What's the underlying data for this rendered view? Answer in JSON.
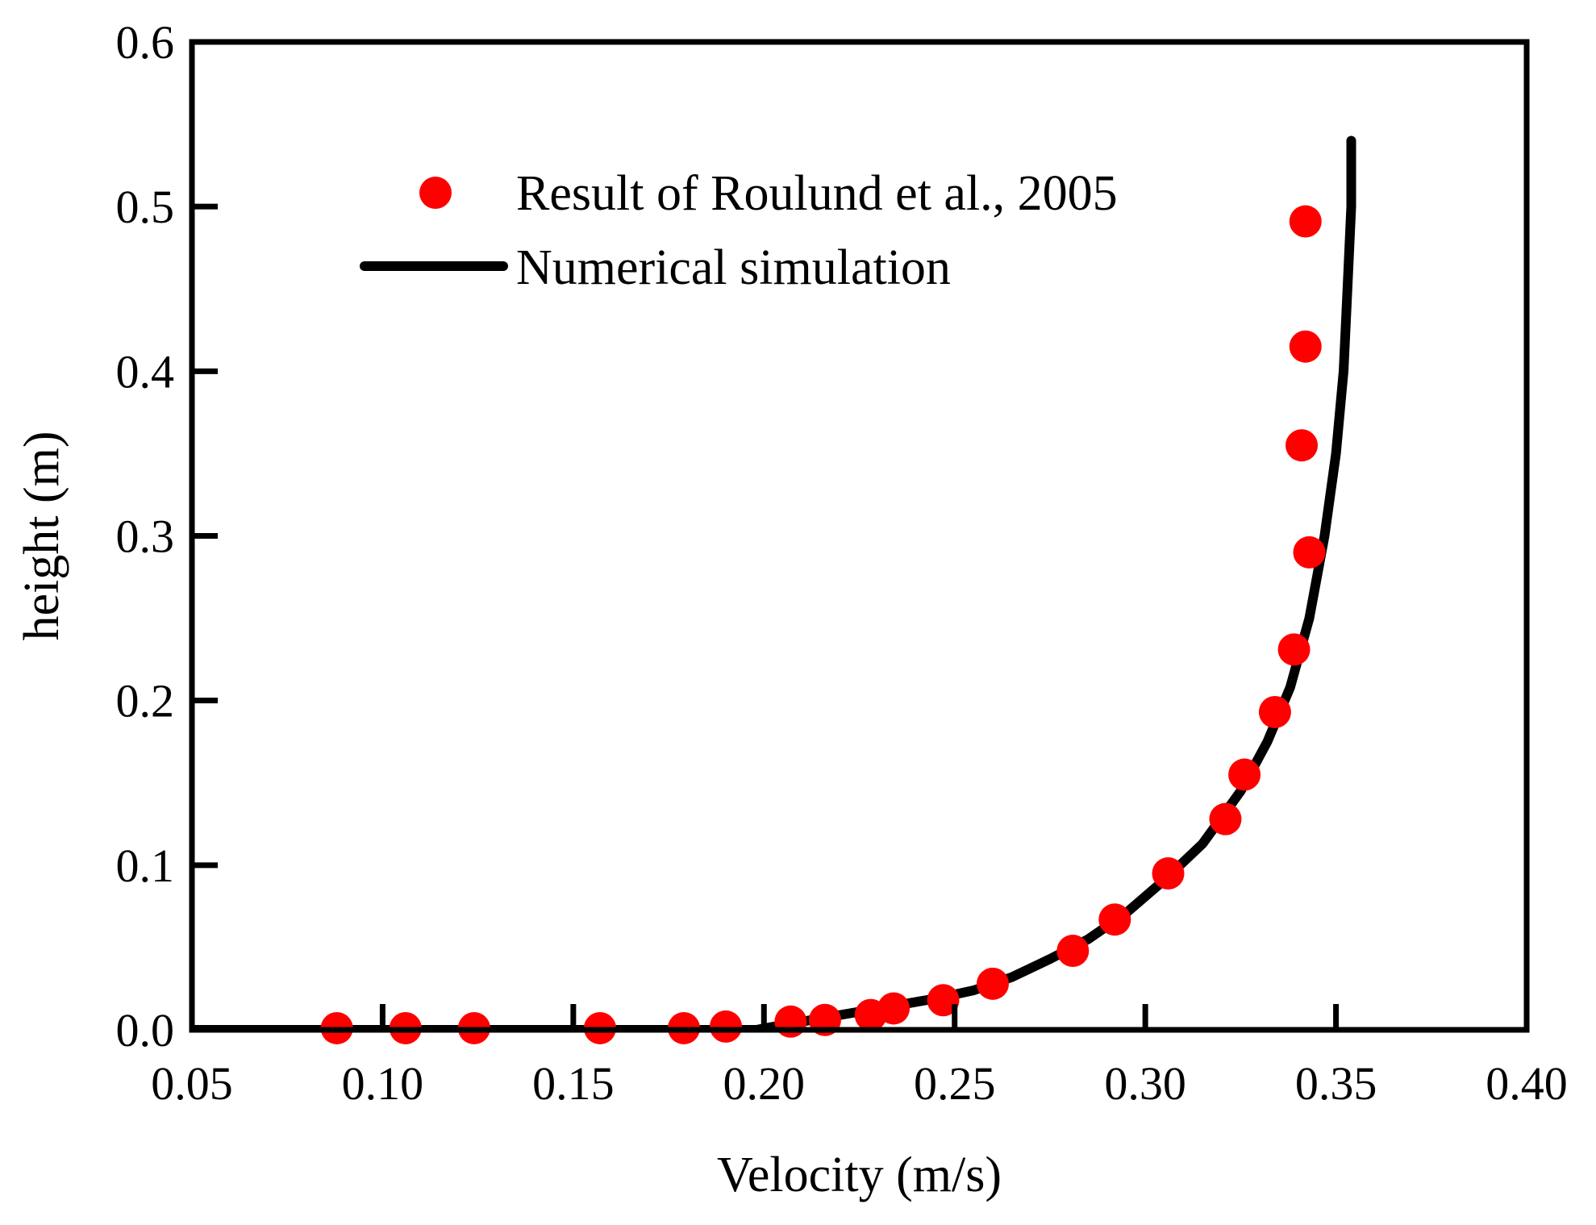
{
  "chart_data": {
    "type": "scatter",
    "title": "",
    "xlabel": "Velocity (m/s)",
    "ylabel": "height (m)",
    "xlim": [
      0.05,
      0.4
    ],
    "ylim": [
      0.0,
      0.6
    ],
    "xticks": [
      0.05,
      0.1,
      0.15,
      0.2,
      0.25,
      0.3,
      0.35,
      0.4
    ],
    "xtick_labels": [
      "0.05",
      "0.10",
      "0.15",
      "0.20",
      "0.25",
      "0.30",
      "0.35",
      "0.40"
    ],
    "yticks": [
      0.0,
      0.1,
      0.2,
      0.3,
      0.4,
      0.5,
      0.6
    ],
    "ytick_labels": [
      "0.0",
      "0.1",
      "0.2",
      "0.3",
      "0.4",
      "0.5",
      "0.6"
    ],
    "grid": false,
    "legend_position": "top-center",
    "series": [
      {
        "name": "Result of Roulund et al., 2005",
        "kind": "scatter",
        "color": "#ff0000",
        "points": [
          [
            0.088,
            0.001
          ],
          [
            0.106,
            0.001
          ],
          [
            0.124,
            0.001
          ],
          [
            0.157,
            0.001
          ],
          [
            0.179,
            0.001
          ],
          [
            0.19,
            0.002
          ],
          [
            0.207,
            0.005
          ],
          [
            0.216,
            0.006
          ],
          [
            0.228,
            0.009
          ],
          [
            0.234,
            0.013
          ],
          [
            0.247,
            0.018
          ],
          [
            0.26,
            0.028
          ],
          [
            0.281,
            0.048
          ],
          [
            0.292,
            0.067
          ],
          [
            0.306,
            0.095
          ],
          [
            0.321,
            0.128
          ],
          [
            0.326,
            0.155
          ],
          [
            0.334,
            0.193
          ],
          [
            0.339,
            0.231
          ],
          [
            0.343,
            0.29
          ],
          [
            0.341,
            0.355
          ],
          [
            0.342,
            0.415
          ],
          [
            0.342,
            0.491
          ]
        ]
      },
      {
        "name": "Numerical simulation",
        "kind": "line",
        "color": "#000000",
        "points": [
          [
            0.05,
            0.0
          ],
          [
            0.198,
            0.0
          ],
          [
            0.205,
            0.003
          ],
          [
            0.215,
            0.007
          ],
          [
            0.225,
            0.011
          ],
          [
            0.235,
            0.015
          ],
          [
            0.245,
            0.019
          ],
          [
            0.255,
            0.024
          ],
          [
            0.265,
            0.032
          ],
          [
            0.275,
            0.043
          ],
          [
            0.285,
            0.055
          ],
          [
            0.295,
            0.071
          ],
          [
            0.305,
            0.091
          ],
          [
            0.315,
            0.113
          ],
          [
            0.325,
            0.145
          ],
          [
            0.332,
            0.175
          ],
          [
            0.338,
            0.208
          ],
          [
            0.343,
            0.25
          ],
          [
            0.347,
            0.3
          ],
          [
            0.35,
            0.35
          ],
          [
            0.352,
            0.4
          ],
          [
            0.353,
            0.45
          ],
          [
            0.354,
            0.5
          ],
          [
            0.354,
            0.54
          ]
        ]
      }
    ]
  }
}
